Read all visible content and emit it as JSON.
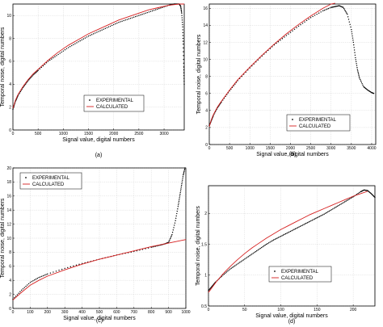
{
  "chart_data": [
    {
      "type": "line",
      "caption": "(a)",
      "xlabel": "Signal value, digital numbers",
      "ylabel": "Temporal noise, digital numbers",
      "xlim": [
        0,
        3400
      ],
      "ylim": [
        0,
        11
      ],
      "xticks": [
        0,
        500,
        1000,
        1500,
        2000,
        2500,
        3000
      ],
      "yticks": [
        0,
        2,
        4,
        6,
        8,
        10
      ],
      "grid": true,
      "legend": "bottom-right",
      "colors": {
        "experimental": "#000000",
        "calculated": "#d62020"
      },
      "series": [
        {
          "name": "EXPERIMENTAL",
          "style": "dots",
          "x": [
            0,
            50,
            100,
            200,
            300,
            400,
            500,
            700,
            900,
            1100,
            1300,
            1500,
            1700,
            1900,
            2100,
            2300,
            2500,
            2700,
            2900,
            3100,
            3200,
            3300,
            3330,
            3350,
            3370,
            3380,
            3390,
            3400
          ],
          "y": [
            1.8,
            2.5,
            3.0,
            3.7,
            4.3,
            4.8,
            5.2,
            6.0,
            6.6,
            7.2,
            7.7,
            8.2,
            8.6,
            9.0,
            9.4,
            9.7,
            10.0,
            10.3,
            10.6,
            10.9,
            11.0,
            11.0,
            10.8,
            10.2,
            9.0,
            7.5,
            5.5,
            4.0
          ]
        },
        {
          "name": "CALCULATED",
          "style": "line",
          "x": [
            0,
            50,
            100,
            200,
            300,
            400,
            500,
            700,
            900,
            1100,
            1300,
            1500,
            1700,
            1900,
            2100,
            2300,
            2500,
            2700,
            2900,
            3100,
            3300,
            3400
          ],
          "y": [
            1.9,
            2.6,
            3.1,
            3.8,
            4.4,
            4.9,
            5.3,
            6.1,
            6.8,
            7.4,
            7.9,
            8.4,
            8.8,
            9.2,
            9.6,
            9.9,
            10.2,
            10.5,
            10.7,
            10.9,
            11.0,
            11.0
          ]
        }
      ]
    },
    {
      "type": "line",
      "caption": "(b)",
      "xlabel": "Signal value, digital numbers",
      "ylabel": "Temporal noise, digital numbers",
      "xlim": [
        0,
        4100
      ],
      "ylim": [
        0,
        16.5
      ],
      "xticks": [
        0,
        500,
        1000,
        1500,
        2000,
        2500,
        3000,
        3500,
        4000
      ],
      "yticks": [
        0,
        2,
        4,
        6,
        8,
        10,
        12,
        14,
        16
      ],
      "grid": true,
      "legend": "bottom-right",
      "colors": {
        "experimental": "#000000",
        "calculated": "#d62020"
      },
      "series": [
        {
          "name": "EXPERIMENTAL",
          "style": "dots",
          "x": [
            0,
            50,
            100,
            200,
            300,
            500,
            700,
            1000,
            1300,
            1600,
            1900,
            2200,
            2500,
            2800,
            3000,
            3100,
            3200,
            3300,
            3400,
            3500,
            3550,
            3600,
            3650,
            3700,
            3800,
            3900,
            4000,
            4050
          ],
          "y": [
            2.2,
            2.8,
            3.4,
            4.3,
            5.0,
            6.3,
            7.5,
            9.0,
            10.4,
            11.7,
            12.8,
            13.9,
            14.9,
            15.7,
            16.1,
            16.2,
            16.3,
            16.1,
            15.3,
            13.5,
            12.0,
            10.2,
            8.8,
            7.8,
            6.8,
            6.4,
            6.1,
            6.0
          ]
        },
        {
          "name": "CALCULATED",
          "style": "line",
          "x": [
            0,
            50,
            100,
            200,
            300,
            500,
            700,
            1000,
            1300,
            1600,
            1900,
            2200,
            2500,
            2800,
            3000,
            3100
          ],
          "y": [
            2.1,
            2.9,
            3.5,
            4.4,
            5.1,
            6.4,
            7.6,
            9.1,
            10.5,
            11.8,
            13.0,
            14.1,
            15.1,
            16.0,
            16.5,
            16.6
          ]
        }
      ]
    },
    {
      "type": "line",
      "caption": "(c)",
      "xlabel": "Signal value, digital numbers",
      "ylabel": "Temporal noise, digital numbers",
      "xlim": [
        0,
        1000
      ],
      "ylim": [
        0,
        20
      ],
      "xticks": [
        0,
        100,
        200,
        300,
        400,
        500,
        600,
        700,
        800,
        900,
        1000
      ],
      "yticks": [
        0,
        2,
        4,
        6,
        8,
        10,
        12,
        14,
        16,
        18,
        20
      ],
      "grid": true,
      "legend": "top-left",
      "colors": {
        "experimental": "#000000",
        "calculated": "#d62020"
      },
      "series": [
        {
          "name": "EXPERIMENTAL",
          "style": "dots",
          "x": [
            0,
            50,
            100,
            150,
            200,
            300,
            400,
            500,
            600,
            700,
            800,
            850,
            880,
            900,
            920,
            940,
            955,
            965,
            975,
            985,
            995
          ],
          "y": [
            1.3,
            2.6,
            3.7,
            4.4,
            4.9,
            5.7,
            6.4,
            7.0,
            7.6,
            8.1,
            8.7,
            9.0,
            9.2,
            9.4,
            10.5,
            12.5,
            14.5,
            16.0,
            17.5,
            19.0,
            20.0
          ]
        },
        {
          "name": "CALCULATED",
          "style": "line",
          "x": [
            0,
            50,
            100,
            150,
            200,
            300,
            400,
            500,
            600,
            700,
            800,
            900,
            1000
          ],
          "y": [
            1.2,
            2.3,
            3.3,
            4.0,
            4.6,
            5.5,
            6.3,
            7.0,
            7.6,
            8.2,
            8.8,
            9.3,
            9.8
          ]
        }
      ]
    },
    {
      "type": "line",
      "caption": "(d)",
      "xlabel": "Signal value, digital numbers",
      "ylabel": "Temporal noise, digital numbers",
      "xlim": [
        0,
        230
      ],
      "ylim": [
        0.5,
        2.45
      ],
      "xticks": [
        0,
        50,
        100,
        150,
        200
      ],
      "yticks": [
        0.5,
        1,
        1.5,
        2
      ],
      "grid": true,
      "legend": "bottom-right",
      "colors": {
        "experimental": "#000000",
        "calculated": "#d62020"
      },
      "series": [
        {
          "name": "EXPERIMENTAL",
          "style": "dots",
          "x": [
            0,
            5,
            10,
            20,
            30,
            40,
            50,
            60,
            70,
            80,
            90,
            100,
            110,
            120,
            130,
            140,
            150,
            160,
            170,
            180,
            190,
            200,
            210,
            215,
            220,
            225,
            230
          ],
          "y": [
            0.75,
            0.82,
            0.89,
            1.0,
            1.1,
            1.18,
            1.26,
            1.34,
            1.42,
            1.5,
            1.57,
            1.63,
            1.69,
            1.75,
            1.81,
            1.87,
            1.93,
            1.99,
            2.06,
            2.13,
            2.2,
            2.27,
            2.35,
            2.38,
            2.37,
            2.32,
            2.26
          ]
        },
        {
          "name": "CALCULATED",
          "style": "line",
          "x": [
            0,
            5,
            10,
            20,
            30,
            40,
            50,
            60,
            70,
            80,
            90,
            100,
            110,
            120,
            130,
            140,
            150,
            160,
            170,
            180,
            190,
            200,
            210,
            220
          ],
          "y": [
            0.72,
            0.8,
            0.88,
            1.02,
            1.14,
            1.25,
            1.35,
            1.44,
            1.52,
            1.6,
            1.67,
            1.74,
            1.8,
            1.86,
            1.92,
            1.98,
            2.03,
            2.08,
            2.13,
            2.18,
            2.23,
            2.28,
            2.32,
            2.36
          ]
        }
      ]
    }
  ]
}
